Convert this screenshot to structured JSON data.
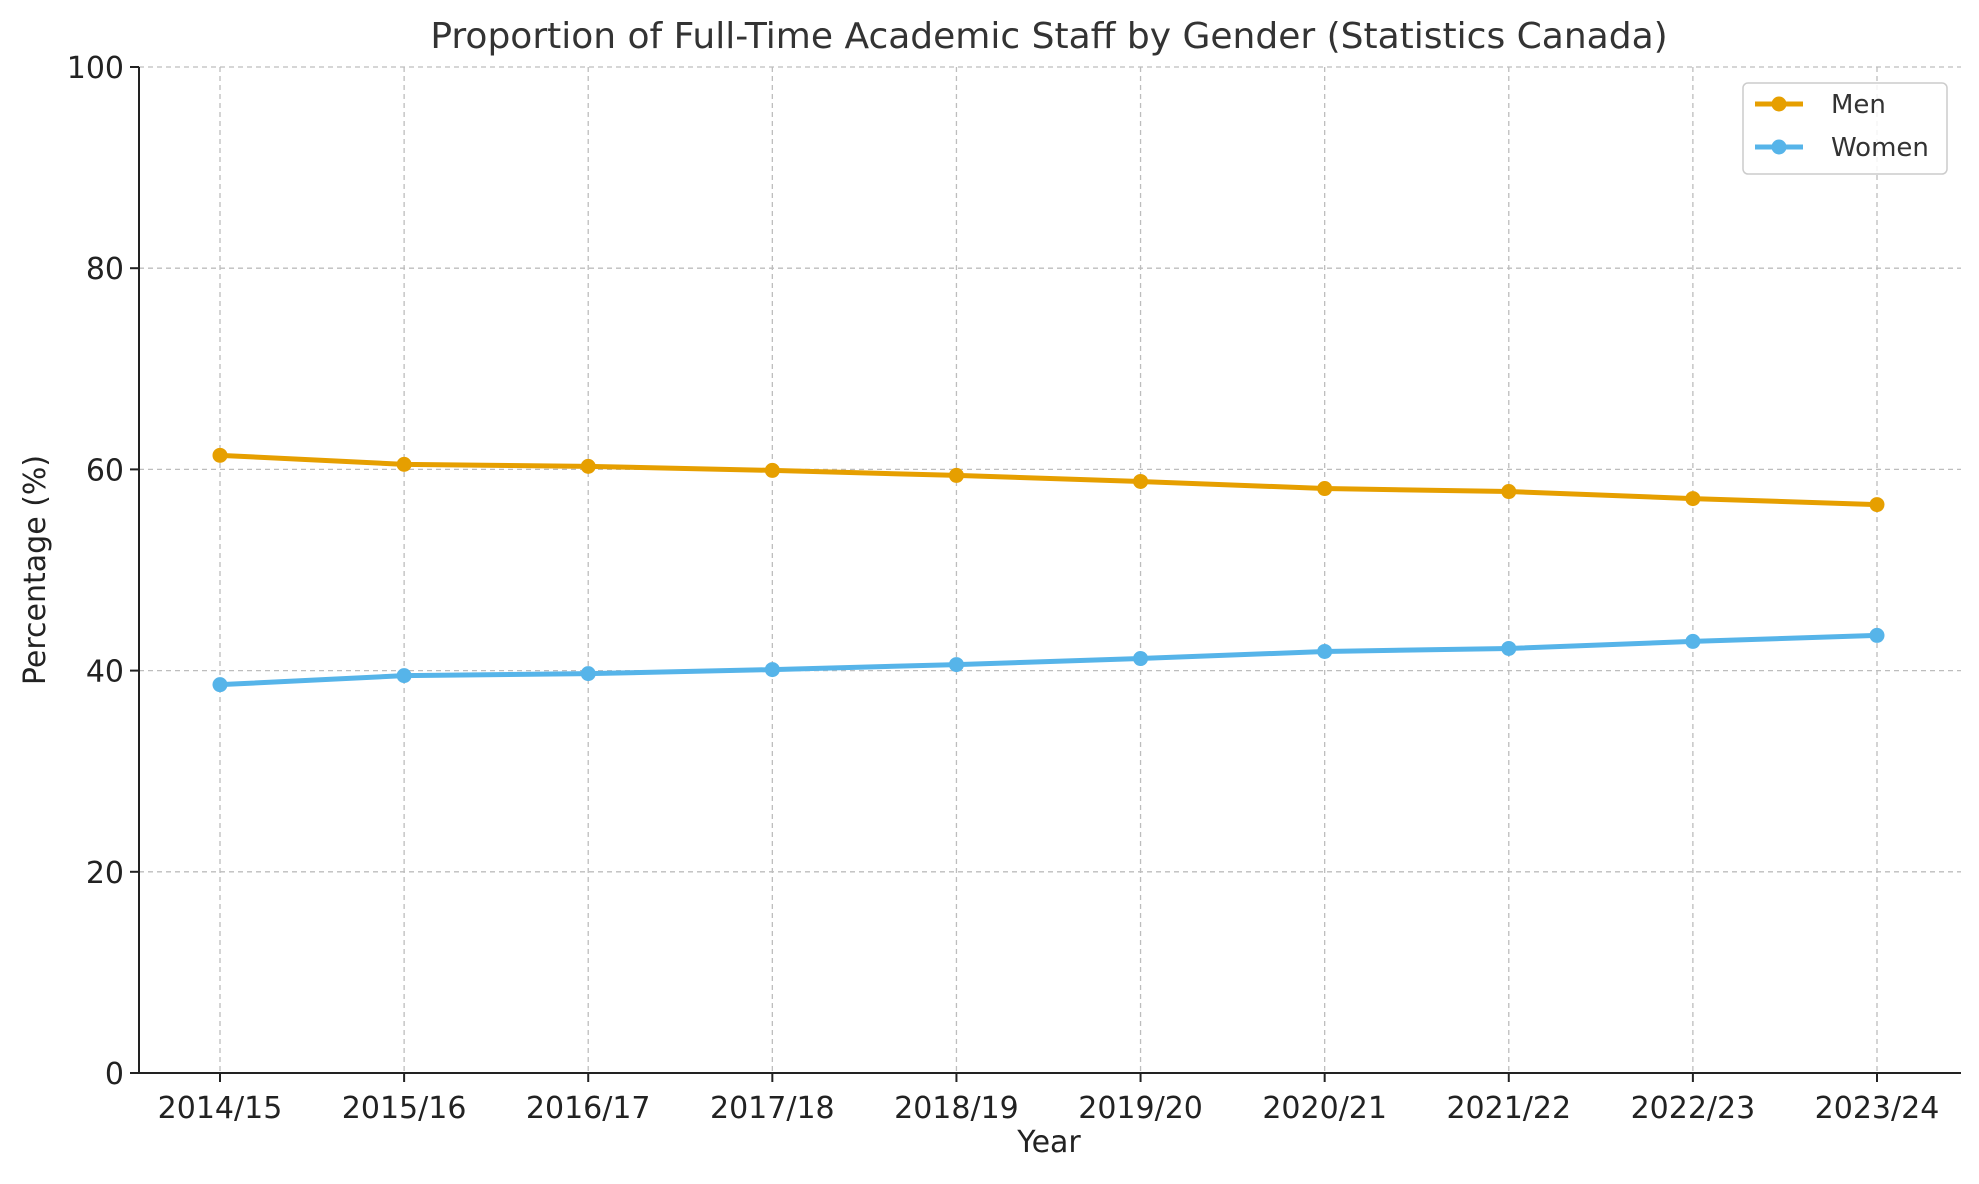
{
  "chart_data": {
    "type": "line",
    "title": "Proportion of Full-Time Academic Staff by Gender (Statistics Canada)",
    "xlabel": "Year",
    "ylabel": "Percentage (%)",
    "categories": [
      "2014/15",
      "2015/16",
      "2016/17",
      "2017/18",
      "2018/19",
      "2019/20",
      "2020/21",
      "2021/22",
      "2022/23",
      "2023/24"
    ],
    "ylim": [
      0,
      100
    ],
    "yticks": [
      0,
      20,
      40,
      60,
      80,
      100
    ],
    "grid": true,
    "legend_position": "top-right",
    "series": [
      {
        "name": "Men",
        "color": "#E69F00",
        "marker": "circle",
        "values": [
          61.4,
          60.5,
          60.3,
          59.9,
          59.4,
          58.8,
          58.1,
          57.8,
          57.1,
          56.5
        ]
      },
      {
        "name": "Women",
        "color": "#56B4E9",
        "marker": "circle",
        "values": [
          38.6,
          39.5,
          39.7,
          40.1,
          40.6,
          41.2,
          41.9,
          42.2,
          42.9,
          43.5
        ]
      }
    ]
  }
}
